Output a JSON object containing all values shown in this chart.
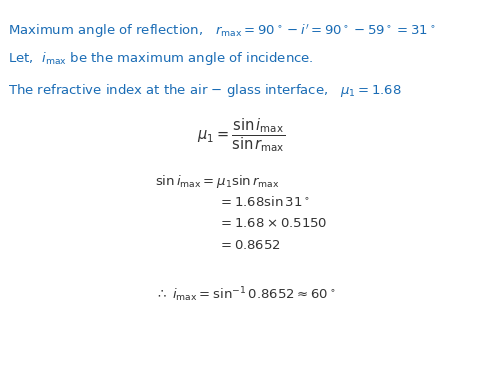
{
  "bg_color": "#ffffff",
  "text_color_black": "#333333",
  "text_color_blue": "#1a6cb5",
  "line1_plain": "Maximum angle of reflection,  ",
  "line1_math": "$r_{\\mathrm{max}} = 90^\\circ - i^{\\prime} = 90^\\circ - 59^\\circ = 31^\\circ$",
  "line2_plain": "Let,  ",
  "line2_math": "$i_{\\mathrm{max}}$",
  "line2_rest": " be the maximum angle of incidence.",
  "line3_plain": "The refractive index at the air – glass interface,   ",
  "line3_math": "$\\mu_1 = 1.68$",
  "formula_fraction": "$\\mu_1 = \\dfrac{\\sin i_{\\mathrm{max}}}{\\sin r_{\\mathrm{max}}}$",
  "eq1": "$\\sin i_{\\mathrm{max}} = \\mu_1 \\sin r_{\\mathrm{max}}$",
  "eq2": "$= 1.68\\sin 31^\\circ$",
  "eq3": "$= 1.68 \\times 0.5150$",
  "eq4": "$= 0.8652$",
  "eq5": "$\\therefore\\; i_{\\mathrm{max}} = \\sin^{-1} 0.8652 \\approx 60^\\circ$",
  "figsize": [
    4.83,
    3.8
  ],
  "dpi": 100
}
